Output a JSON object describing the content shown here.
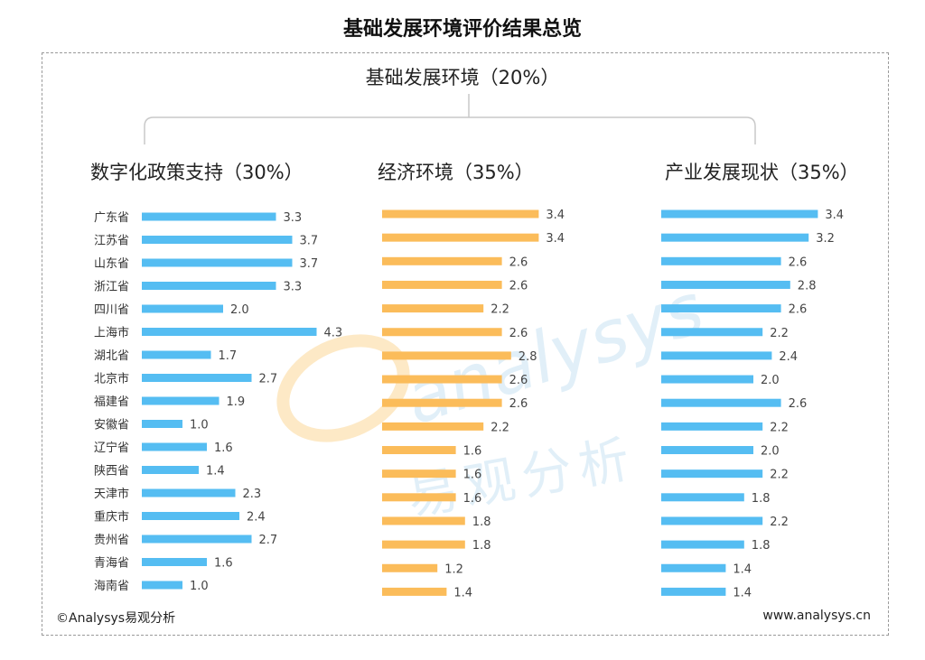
{
  "title": "基础发展环境评价结果总览",
  "root": {
    "label": "基础发展环境（20%）"
  },
  "footer": {
    "left": "©Analysys易观分析",
    "right": "www.analysys.cn"
  },
  "watermark": {
    "logo_text": "analysys",
    "cn_text": "易观分析"
  },
  "colors": {
    "blue": "#55bdf2",
    "orange": "#fbbc5a"
  },
  "chart_data": [
    {
      "type": "bar",
      "orientation": "horizontal",
      "title": "数字化政策支持（30%）",
      "color": "blue",
      "xlim": [
        0,
        4.3
      ],
      "categories": [
        "广东省",
        "江苏省",
        "山东省",
        "浙江省",
        "四川省",
        "上海市",
        "湖北省",
        "北京市",
        "福建省",
        "安徽省",
        "辽宁省",
        "陕西省",
        "天津市",
        "重庆市",
        "贵州省",
        "青海省",
        "海南省"
      ],
      "values": [
        3.3,
        3.7,
        3.7,
        3.3,
        2.0,
        4.3,
        1.7,
        2.7,
        1.9,
        1.0,
        1.6,
        1.4,
        2.3,
        2.4,
        2.7,
        1.6,
        1.0
      ]
    },
    {
      "type": "bar",
      "orientation": "horizontal",
      "title": "经济环境（35%）",
      "color": "orange",
      "xlim": [
        0,
        4.3
      ],
      "categories": [
        "广东省",
        "江苏省",
        "山东省",
        "浙江省",
        "四川省",
        "上海市",
        "湖北省",
        "北京市",
        "福建省",
        "安徽省",
        "辽宁省",
        "陕西省",
        "天津市",
        "重庆市",
        "贵州省",
        "青海省",
        "海南省"
      ],
      "values": [
        3.4,
        3.4,
        2.6,
        2.6,
        2.2,
        2.6,
        2.8,
        2.6,
        2.6,
        2.2,
        1.6,
        1.6,
        1.6,
        1.8,
        1.8,
        1.2,
        1.4
      ]
    },
    {
      "type": "bar",
      "orientation": "horizontal",
      "title": "产业发展现状（35%）",
      "color": "blue",
      "xlim": [
        0,
        4.3
      ],
      "categories": [
        "广东省",
        "江苏省",
        "山东省",
        "浙江省",
        "四川省",
        "上海市",
        "湖北省",
        "北京市",
        "福建省",
        "安徽省",
        "辽宁省",
        "陕西省",
        "天津市",
        "重庆市",
        "贵州省",
        "青海省",
        "海南省"
      ],
      "values": [
        3.4,
        3.2,
        2.6,
        2.8,
        2.6,
        2.2,
        2.4,
        2.0,
        2.6,
        2.2,
        2.0,
        2.2,
        1.8,
        2.2,
        1.8,
        1.4,
        1.4
      ]
    }
  ]
}
